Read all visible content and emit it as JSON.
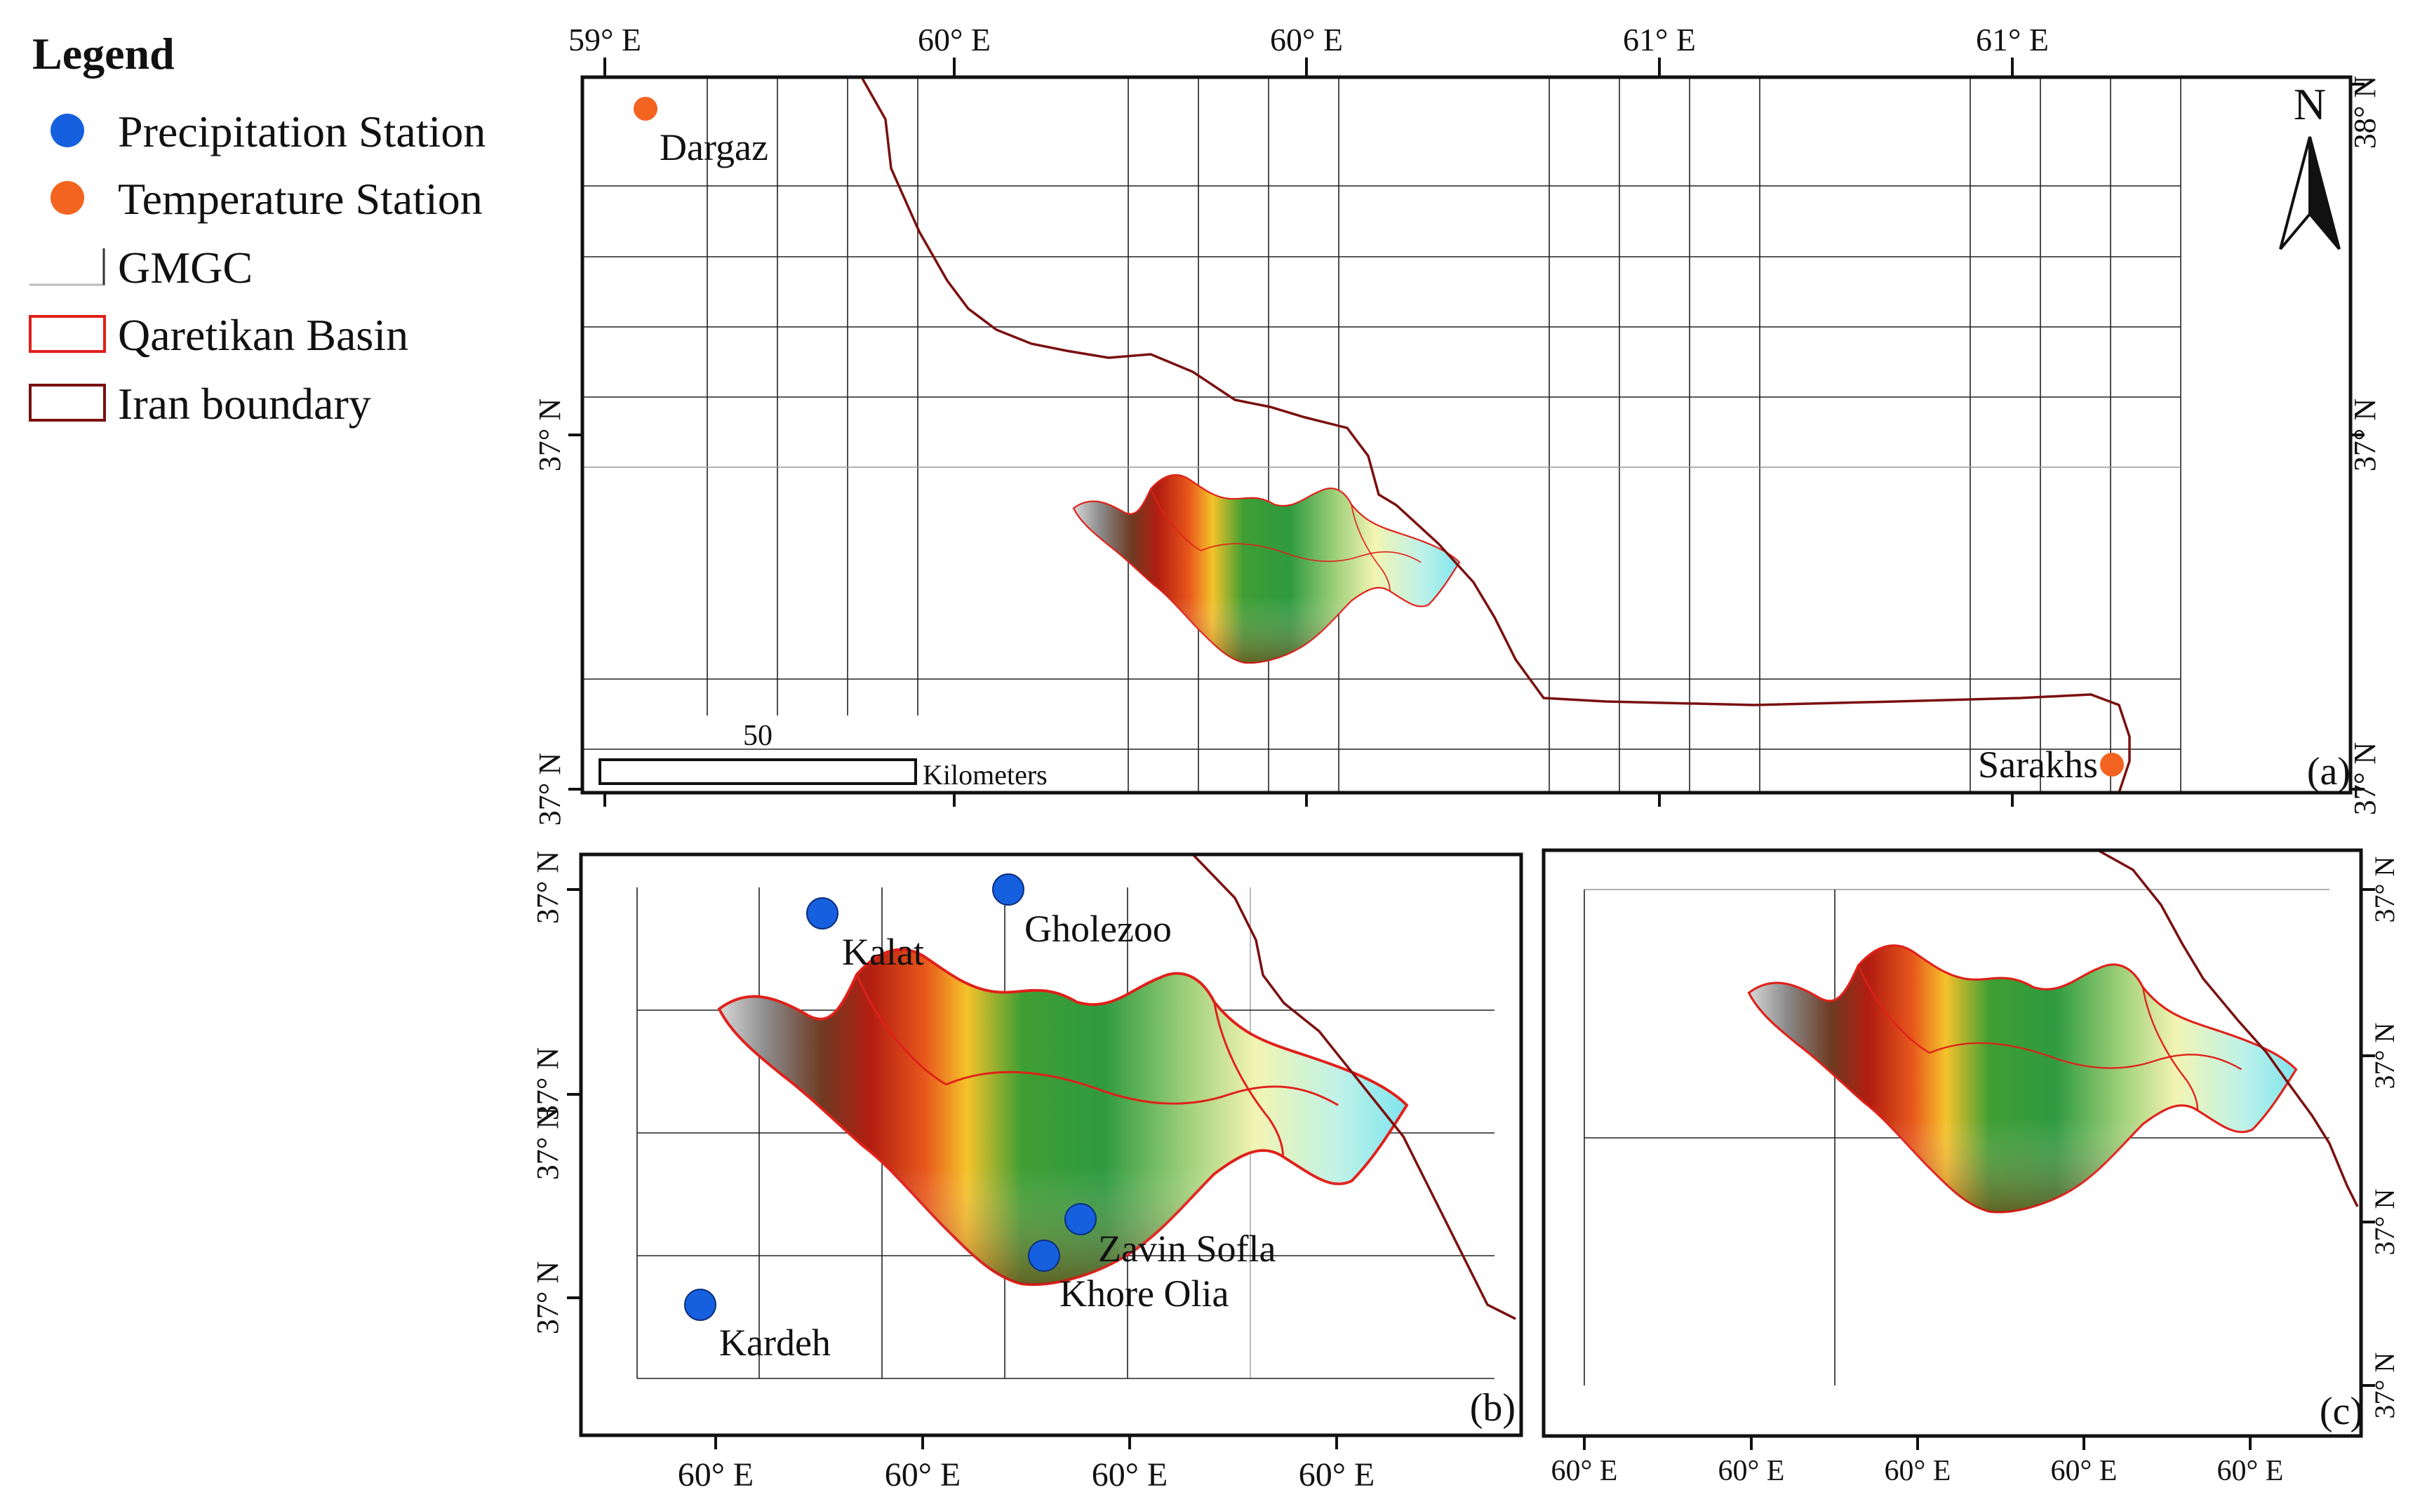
{
  "legend": {
    "title": "Legend",
    "items": [
      {
        "label": "Precipitation Station",
        "symbol": "blue-dot"
      },
      {
        "label": "Temperature Station",
        "symbol": "orange-dot"
      },
      {
        "label": "GMGC",
        "symbol": "grid-line"
      },
      {
        "label": "Qaretikan Basin",
        "symbol": "red-outline-box"
      },
      {
        "label": "Iran boundary",
        "symbol": "darkred-outline-box"
      }
    ]
  },
  "colors": {
    "precip": "#1660e0",
    "temp": "#f26420",
    "basin_outline": "#e0201a",
    "iran_boundary": "#7a1010",
    "grid": "#222222"
  },
  "panel_a": {
    "label": "(a)",
    "north": "N",
    "top_ticks": [
      "59° E",
      "60° E",
      "60° E",
      "61° E",
      "61° E"
    ],
    "left_ticks": [
      "37° N",
      "37° N"
    ],
    "right_ticks": [
      "38° N",
      "37° N",
      "37° N"
    ],
    "scale_value": "50",
    "scale_unit": "Kilometers",
    "stations": [
      {
        "name": "Dargaz",
        "type": "temperature"
      },
      {
        "name": "Sarakhs",
        "type": "temperature"
      }
    ]
  },
  "panel_b": {
    "label": "(b)",
    "left_ticks": [
      "37° N",
      "37° N",
      "37° N",
      "37° N"
    ],
    "bottom_ticks": [
      "60° E",
      "60° E",
      "60° E",
      "60° E"
    ],
    "stations": [
      {
        "name": "Kalat",
        "type": "precipitation"
      },
      {
        "name": "Gholezoo",
        "type": "precipitation"
      },
      {
        "name": "Zavin Sofla",
        "type": "precipitation"
      },
      {
        "name": "Khore Olia",
        "type": "precipitation"
      },
      {
        "name": "Kardeh",
        "type": "precipitation"
      }
    ]
  },
  "panel_c": {
    "label": "(c)",
    "right_ticks": [
      "37° N",
      "37° N",
      "37° N",
      "37° N"
    ],
    "bottom_ticks": [
      "60° E",
      "60° E",
      "60° E",
      "60° E",
      "60° E"
    ]
  }
}
